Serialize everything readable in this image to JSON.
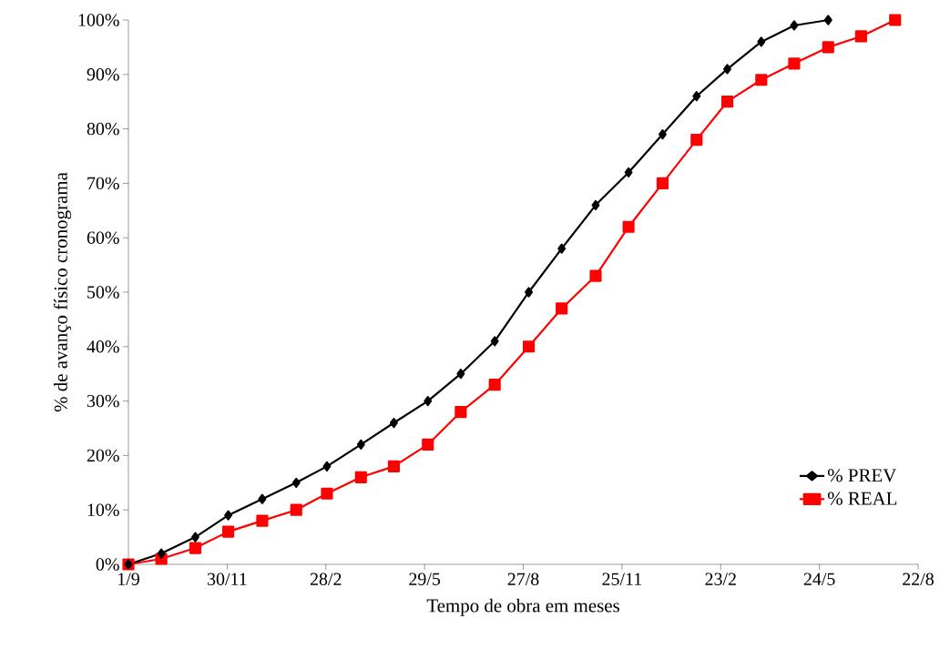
{
  "chart_data": {
    "type": "line",
    "xlabel": "Tempo de obra em meses",
    "ylabel": "% de avanço físico cronograma",
    "x": [
      "2009-09-01",
      "2009-10-01",
      "2009-11-01",
      "2009-12-01",
      "2010-01-01",
      "2010-02-01",
      "2010-03-01",
      "2010-04-01",
      "2010-05-01",
      "2010-06-01",
      "2010-07-01",
      "2010-08-01",
      "2010-09-01",
      "2010-10-01",
      "2010-11-01",
      "2010-12-01",
      "2011-01-01",
      "2011-02-01",
      "2011-03-01",
      "2011-04-01",
      "2011-05-01",
      "2011-06-01",
      "2011-07-01",
      "2011-08-01"
    ],
    "series": [
      {
        "name": "% PREV",
        "color": "#000000",
        "marker": "diamond",
        "values": [
          0,
          2,
          5,
          9,
          12,
          15,
          18,
          22,
          26,
          30,
          35,
          41,
          50,
          58,
          66,
          72,
          79,
          86,
          91,
          96,
          99,
          100,
          null,
          null
        ]
      },
      {
        "name": "% REAL",
        "color": "#ff0000",
        "marker": "square",
        "values": [
          0,
          1,
          3,
          6,
          8,
          10,
          13,
          16,
          18,
          22,
          28,
          33,
          40,
          47,
          53,
          62,
          70,
          78,
          85,
          89,
          92,
          95,
          97,
          100
        ]
      }
    ],
    "xlim": [
      "2009-09-01",
      "2011-08-22"
    ],
    "xticks": [
      {
        "value": "2009-09-01",
        "label": "1/9"
      },
      {
        "value": "2009-11-30",
        "label": "30/11"
      },
      {
        "value": "2010-02-28",
        "label": "28/2"
      },
      {
        "value": "2010-05-29",
        "label": "29/5"
      },
      {
        "value": "2010-08-27",
        "label": "27/8"
      },
      {
        "value": "2010-11-25",
        "label": "25/11"
      },
      {
        "value": "2011-02-23",
        "label": "23/2"
      },
      {
        "value": "2011-05-24",
        "label": "24/5"
      },
      {
        "value": "2011-08-22",
        "label": "22/8"
      }
    ],
    "ylim": [
      0,
      100
    ],
    "yticks": [
      {
        "value": 0,
        "label": "0%"
      },
      {
        "value": 10,
        "label": "10%"
      },
      {
        "value": 20,
        "label": "20%"
      },
      {
        "value": 30,
        "label": "30%"
      },
      {
        "value": 40,
        "label": "40%"
      },
      {
        "value": 50,
        "label": "50%"
      },
      {
        "value": 60,
        "label": "60%"
      },
      {
        "value": 70,
        "label": "70%"
      },
      {
        "value": 80,
        "label": "80%"
      },
      {
        "value": 90,
        "label": "90%"
      },
      {
        "value": 100,
        "label": "100%"
      }
    ],
    "legend": "bottom right",
    "line_style": "solid"
  }
}
